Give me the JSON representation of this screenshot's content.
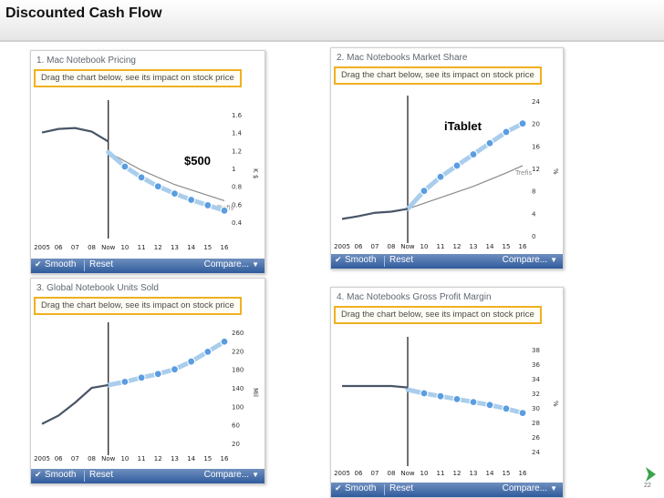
{
  "slide": {
    "title": "Discounted Cash Flow",
    "page_number": "22"
  },
  "annotations": {
    "price_label": "$500",
    "itablet_label": "iTablet"
  },
  "colors": {
    "drag_border": "#f0b020",
    "toolbar": "#2f5b9c",
    "history_line": "#4a5566",
    "forecast_band": "#a9cdec",
    "point_fill": "#5a9de0",
    "trefis_line": "#8a8a8a",
    "next_icon": "#3aa44a"
  },
  "chart_data": [
    {
      "type": "line",
      "title": "1. Mac Notebook Pricing",
      "drag_hint": "Drag the chart below, see its impact on stock price",
      "x_ticks": [
        "2005",
        "06",
        "07",
        "08",
        "Now",
        "10",
        "11",
        "12",
        "13",
        "14",
        "15",
        "16"
      ],
      "ylabel": "K $",
      "y_ticks": [
        "1.6",
        "1.4",
        "1.2",
        "1",
        "0.8",
        "0.6",
        "0.4"
      ],
      "ylim": [
        0.3,
        1.7
      ],
      "history": {
        "x": [
          0,
          1,
          2,
          3,
          4
        ],
        "y": [
          1.4,
          1.44,
          1.45,
          1.41,
          1.3
        ]
      },
      "forecast": {
        "x": [
          4,
          5,
          6,
          7,
          8,
          9,
          10,
          11
        ],
        "y": [
          1.18,
          1.02,
          0.9,
          0.8,
          0.72,
          0.65,
          0.59,
          0.53
        ]
      },
      "trefis": {
        "label": "Trefis",
        "x": [
          4,
          6,
          8,
          10,
          11
        ],
        "y": [
          1.18,
          0.98,
          0.82,
          0.7,
          0.64
        ]
      },
      "toolbar": {
        "smooth": "Smooth",
        "reset": "Reset",
        "compare": "Compare..."
      }
    },
    {
      "type": "line",
      "title": "2. Mac Notebooks Market Share",
      "drag_hint": "Drag the chart below, see its impact on stock price",
      "x_ticks": [
        "2005",
        "06",
        "07",
        "08",
        "Now",
        "10",
        "11",
        "12",
        "13",
        "14",
        "15",
        "16"
      ],
      "ylabel": "%",
      "y_ticks": [
        "24",
        "20",
        "16",
        "12",
        "8",
        "4",
        "0"
      ],
      "ylim": [
        0,
        24
      ],
      "history": {
        "x": [
          0,
          1,
          2,
          3,
          4
        ],
        "y": [
          3,
          3.5,
          4.1,
          4.3,
          4.8
        ]
      },
      "forecast": {
        "x": [
          4,
          5,
          6,
          7,
          8,
          9,
          10,
          11
        ],
        "y": [
          4.8,
          8,
          10.5,
          12.5,
          14.5,
          16.5,
          18.5,
          20
        ]
      },
      "trefis": {
        "label": "Trefis",
        "x": [
          4,
          6,
          8,
          10,
          11
        ],
        "y": [
          4.8,
          6.8,
          8.8,
          11.2,
          12.5
        ]
      },
      "toolbar": {
        "smooth": "Smooth",
        "reset": "Reset",
        "compare": "Compare..."
      }
    },
    {
      "type": "line",
      "title": "3. Global Notebook Units Sold",
      "drag_hint": "Drag the chart below, see its impact on stock price",
      "x_ticks": [
        "2005",
        "06",
        "07",
        "08",
        "Now",
        "10",
        "11",
        "12",
        "13",
        "14",
        "15",
        "16"
      ],
      "ylabel": "Mil",
      "y_ticks": [
        "260",
        "220",
        "180",
        "140",
        "100",
        "60",
        "20"
      ],
      "ylim": [
        10,
        270
      ],
      "history": {
        "x": [
          0,
          1,
          2,
          3,
          4
        ],
        "y": [
          62,
          80,
          108,
          140,
          146
        ]
      },
      "forecast": {
        "x": [
          4,
          5,
          6,
          7,
          8,
          9,
          10,
          11
        ],
        "y": [
          146,
          153,
          162,
          170,
          180,
          197,
          218,
          240
        ]
      },
      "trefis": null,
      "toolbar": {
        "smooth": "Smooth",
        "reset": "Reset",
        "compare": "Compare..."
      }
    },
    {
      "type": "line",
      "title": "4. Mac Notebooks Gross Profit Margin",
      "drag_hint": "Drag the chart below, see its impact on stock price",
      "x_ticks": [
        "2005",
        "06",
        "07",
        "08",
        "Now",
        "10",
        "11",
        "12",
        "13",
        "14",
        "15",
        "16"
      ],
      "ylabel": "%",
      "y_ticks": [
        "38",
        "36",
        "34",
        "32",
        "30",
        "28",
        "26",
        "24"
      ],
      "ylim": [
        23,
        39
      ],
      "history": {
        "x": [
          0,
          1,
          2,
          3,
          4
        ],
        "y": [
          33,
          33,
          33,
          33,
          32.8
        ]
      },
      "forecast": {
        "x": [
          4,
          5,
          6,
          7,
          8,
          9,
          10,
          11
        ],
        "y": [
          32.5,
          32.0,
          31.6,
          31.2,
          30.8,
          30.4,
          29.9,
          29.3
        ]
      },
      "trefis": null,
      "toolbar": {
        "smooth": "Smooth",
        "reset": "Reset",
        "compare": "Compare..."
      }
    }
  ]
}
